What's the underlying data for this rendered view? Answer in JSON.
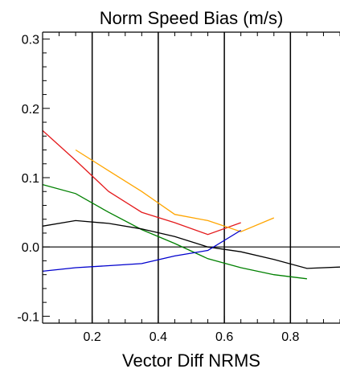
{
  "chart_data": {
    "type": "line",
    "title": "Norm Speed Bias (m/s)",
    "xlabel": "Vector Diff NRMS",
    "ylabel": "",
    "xlim": [
      0.05,
      0.95
    ],
    "ylim": [
      -0.11,
      0.31
    ],
    "x_ticks": [
      0.2,
      0.4,
      0.6,
      0.8
    ],
    "x_tick_labels": [
      "0.2",
      "0.4",
      "0.6",
      "0.8"
    ],
    "y_ticks": [
      -0.1,
      0.0,
      0.1,
      0.2,
      0.3
    ],
    "y_tick_labels": [
      "-0.1",
      "0.0",
      "0.1",
      "0.2",
      "0.3"
    ],
    "vertical_lines": [
      0.2,
      0.4,
      0.6,
      0.8
    ],
    "reference_line_y": 0.0,
    "series": [
      {
        "color": "#e41a1c",
        "x": [
          0.05,
          0.15,
          0.25,
          0.35,
          0.45,
          0.55,
          0.65
        ],
        "y": [
          0.168,
          0.125,
          0.08,
          0.05,
          0.035,
          0.018,
          0.035
        ]
      },
      {
        "color": "#ffa500",
        "x": [
          0.15,
          0.25,
          0.35,
          0.45,
          0.55,
          0.65,
          0.75
        ],
        "y": [
          0.14,
          0.11,
          0.08,
          0.047,
          0.038,
          0.022,
          0.042
        ]
      },
      {
        "color": "#008000",
        "x": [
          0.05,
          0.15,
          0.25,
          0.35,
          0.45,
          0.55,
          0.65,
          0.75,
          0.85
        ],
        "y": [
          0.09,
          0.077,
          0.05,
          0.025,
          0.005,
          -0.017,
          -0.03,
          -0.04,
          -0.046
        ]
      },
      {
        "color": "#000000",
        "x": [
          0.05,
          0.15,
          0.25,
          0.35,
          0.45,
          0.55,
          0.65,
          0.75,
          0.85,
          0.95
        ],
        "y": [
          0.03,
          0.038,
          0.034,
          0.026,
          0.015,
          0.0,
          -0.007,
          -0.018,
          -0.031,
          -0.029
        ]
      },
      {
        "color": "#0000cd",
        "x": [
          0.05,
          0.15,
          0.25,
          0.35,
          0.45,
          0.55,
          0.65
        ],
        "y": [
          -0.035,
          -0.03,
          -0.027,
          -0.024,
          -0.013,
          -0.005,
          0.024
        ]
      }
    ]
  }
}
